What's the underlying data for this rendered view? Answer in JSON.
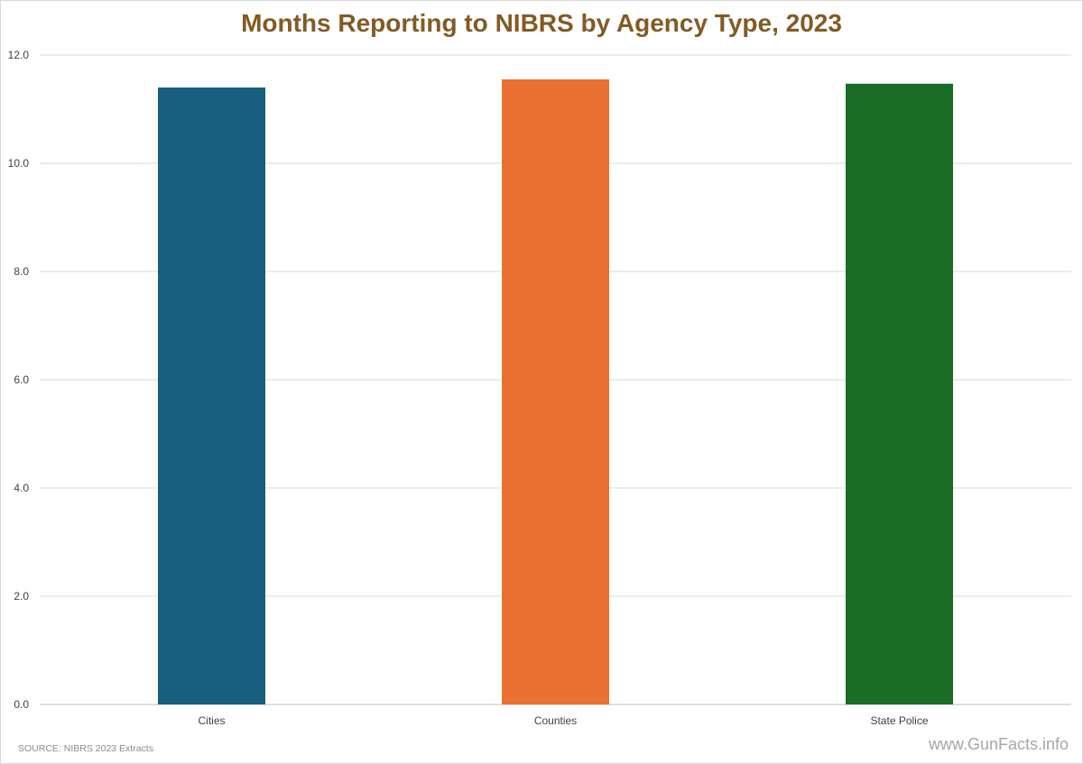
{
  "chart_data": {
    "type": "bar",
    "title": "Months Reporting to NIBRS by Agency Type, 2023",
    "categories": [
      "Cities",
      "Counties",
      "State Police"
    ],
    "values": [
      11.4,
      11.55,
      11.47
    ],
    "colors": [
      "#175E7F",
      "#E97132",
      "#1B6C25"
    ],
    "ylim": [
      0,
      12
    ],
    "yticks": [
      "0.0",
      "2.0",
      "4.0",
      "6.0",
      "8.0",
      "10.0",
      "12.0"
    ],
    "grid": true,
    "xlabel": "",
    "ylabel": "",
    "title_color": "#845A23"
  },
  "footer": {
    "source": "SOURCE: NIBRS 2023 Extracts",
    "watermark": "www.GunFacts.info"
  }
}
